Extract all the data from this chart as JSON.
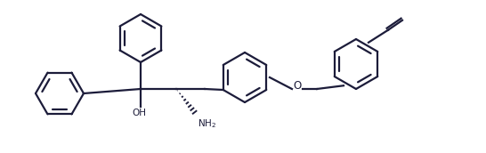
{
  "line_color": "#1c1c3a",
  "bg_color": "#ffffff",
  "lw": 1.6,
  "figsize": [
    5.46,
    1.72
  ],
  "dpi": 100,
  "scale": 1.0
}
